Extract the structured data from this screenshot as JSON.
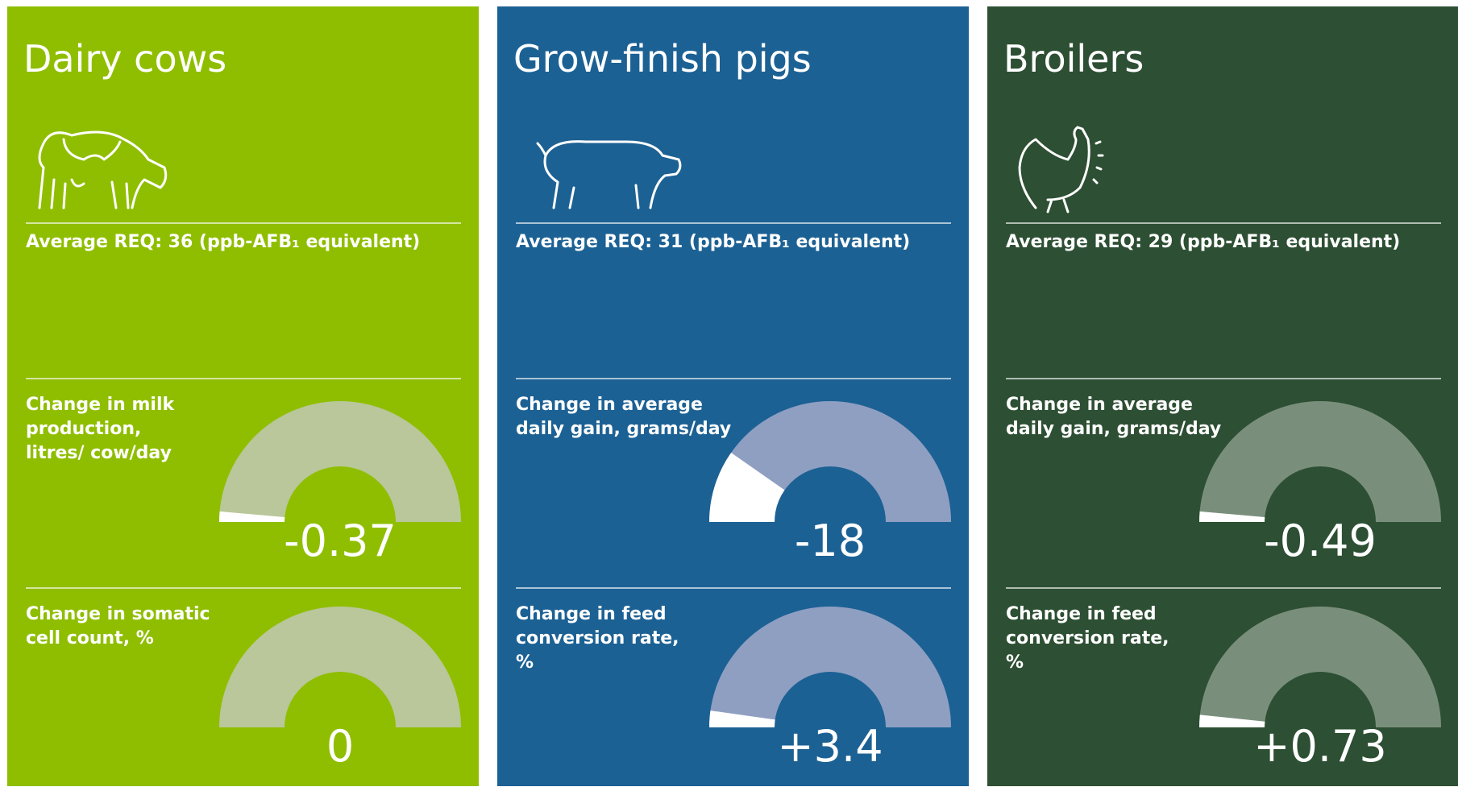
{
  "panels": [
    {
      "title": "Dairy cows",
      "req": "Average REQ: 36 (ppb-AFB₁ equivalent)",
      "color": "#8fbe00",
      "gauge_color": "#b9c79a",
      "metrics": [
        {
          "label": "Change in milk production, litres/ cow/day",
          "value": -0.37,
          "value_label": "-0.37"
        },
        {
          "label": "Change in somatic cell count, %",
          "value": 0,
          "value_label": "0"
        }
      ]
    },
    {
      "title": "Grow-finish pigs",
      "req": "Average REQ: 31 (ppb-AFB₁ equivalent)",
      "color": "#1c6194",
      "gauge_color": "#8f9fc2",
      "metrics": [
        {
          "label": "Change in average daily gain, grams/day",
          "value": -18,
          "value_label": "-18"
        },
        {
          "label": "Change in feed conversion rate, %",
          "value": 3.4,
          "value_label": "+3.4"
        }
      ]
    },
    {
      "title": "Broilers",
      "req": "Average REQ: 29 (ppb-AFB₁ equivalent)",
      "color": "#2d4f33",
      "gauge_color": "#7a8f7b",
      "metrics": [
        {
          "label": "Change in average daily gain, grams/day",
          "value": -0.49,
          "value_label": "-0.49"
        },
        {
          "label": "Change in feed conversion rate, %",
          "value": 0.73,
          "value_label": "+0.73"
        }
      ]
    }
  ]
}
